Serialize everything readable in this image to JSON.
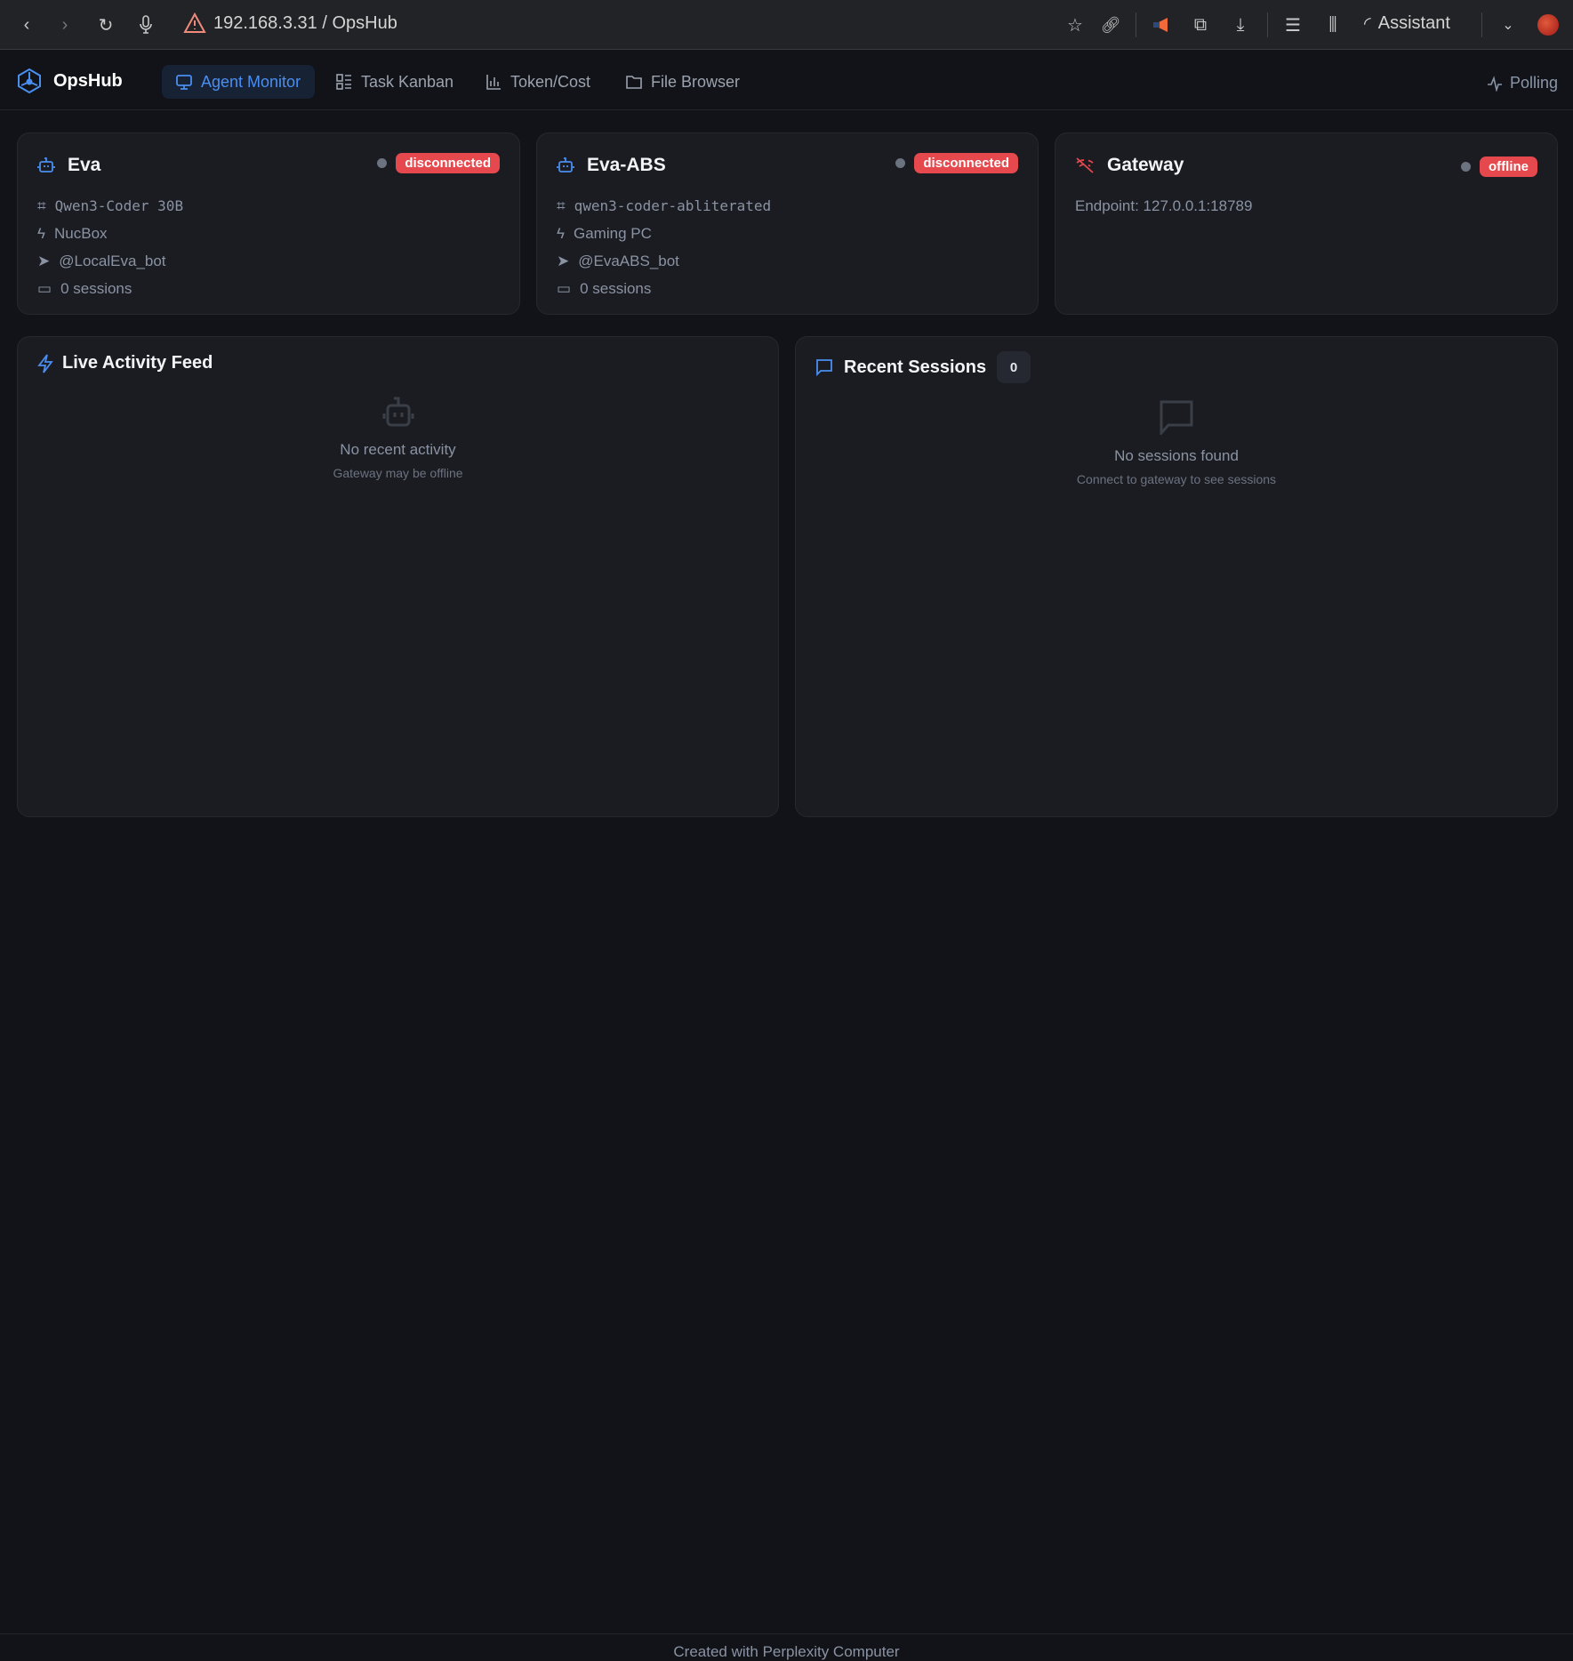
{
  "browser": {
    "url": "192.168.3.31 / OpsHub",
    "assistant_label": "Assistant"
  },
  "nav": {
    "app_name": "OpsHub",
    "tabs": [
      {
        "label": "Agent Monitor",
        "icon": "monitor-icon",
        "active": true
      },
      {
        "label": "Task Kanban",
        "icon": "kanban-icon",
        "active": false
      },
      {
        "label": "Token/Cost",
        "icon": "bar-chart-icon",
        "active": false
      },
      {
        "label": "File Browser",
        "icon": "folder-icon",
        "active": false
      }
    ],
    "status": "Polling"
  },
  "agents": [
    {
      "name": "Eva",
      "status": "disconnected",
      "model": "Qwen3-Coder 30B",
      "host": "NucBox",
      "bot": "@LocalEva_bot",
      "sessions": "0 sessions"
    },
    {
      "name": "Eva-ABS",
      "status": "disconnected",
      "model": "qwen3-coder-abliterated",
      "host": "Gaming PC",
      "bot": "@EvaABS_bot",
      "sessions": "0 sessions"
    }
  ],
  "gateway": {
    "name": "Gateway",
    "status": "offline",
    "endpoint": "Endpoint: 127.0.0.1:18789"
  },
  "activity": {
    "title": "Live Activity Feed",
    "empty_title": "No recent activity",
    "empty_sub": "Gateway may be offline"
  },
  "sessions": {
    "title": "Recent Sessions",
    "count": "0",
    "empty_title": "No sessions found",
    "empty_sub": "Connect to gateway to see sessions"
  },
  "footer": "Created with Perplexity Computer",
  "colors": {
    "accent": "#4a8ef0",
    "danger": "#e5484d",
    "background": "#111318",
    "card": "#1b1c21"
  }
}
